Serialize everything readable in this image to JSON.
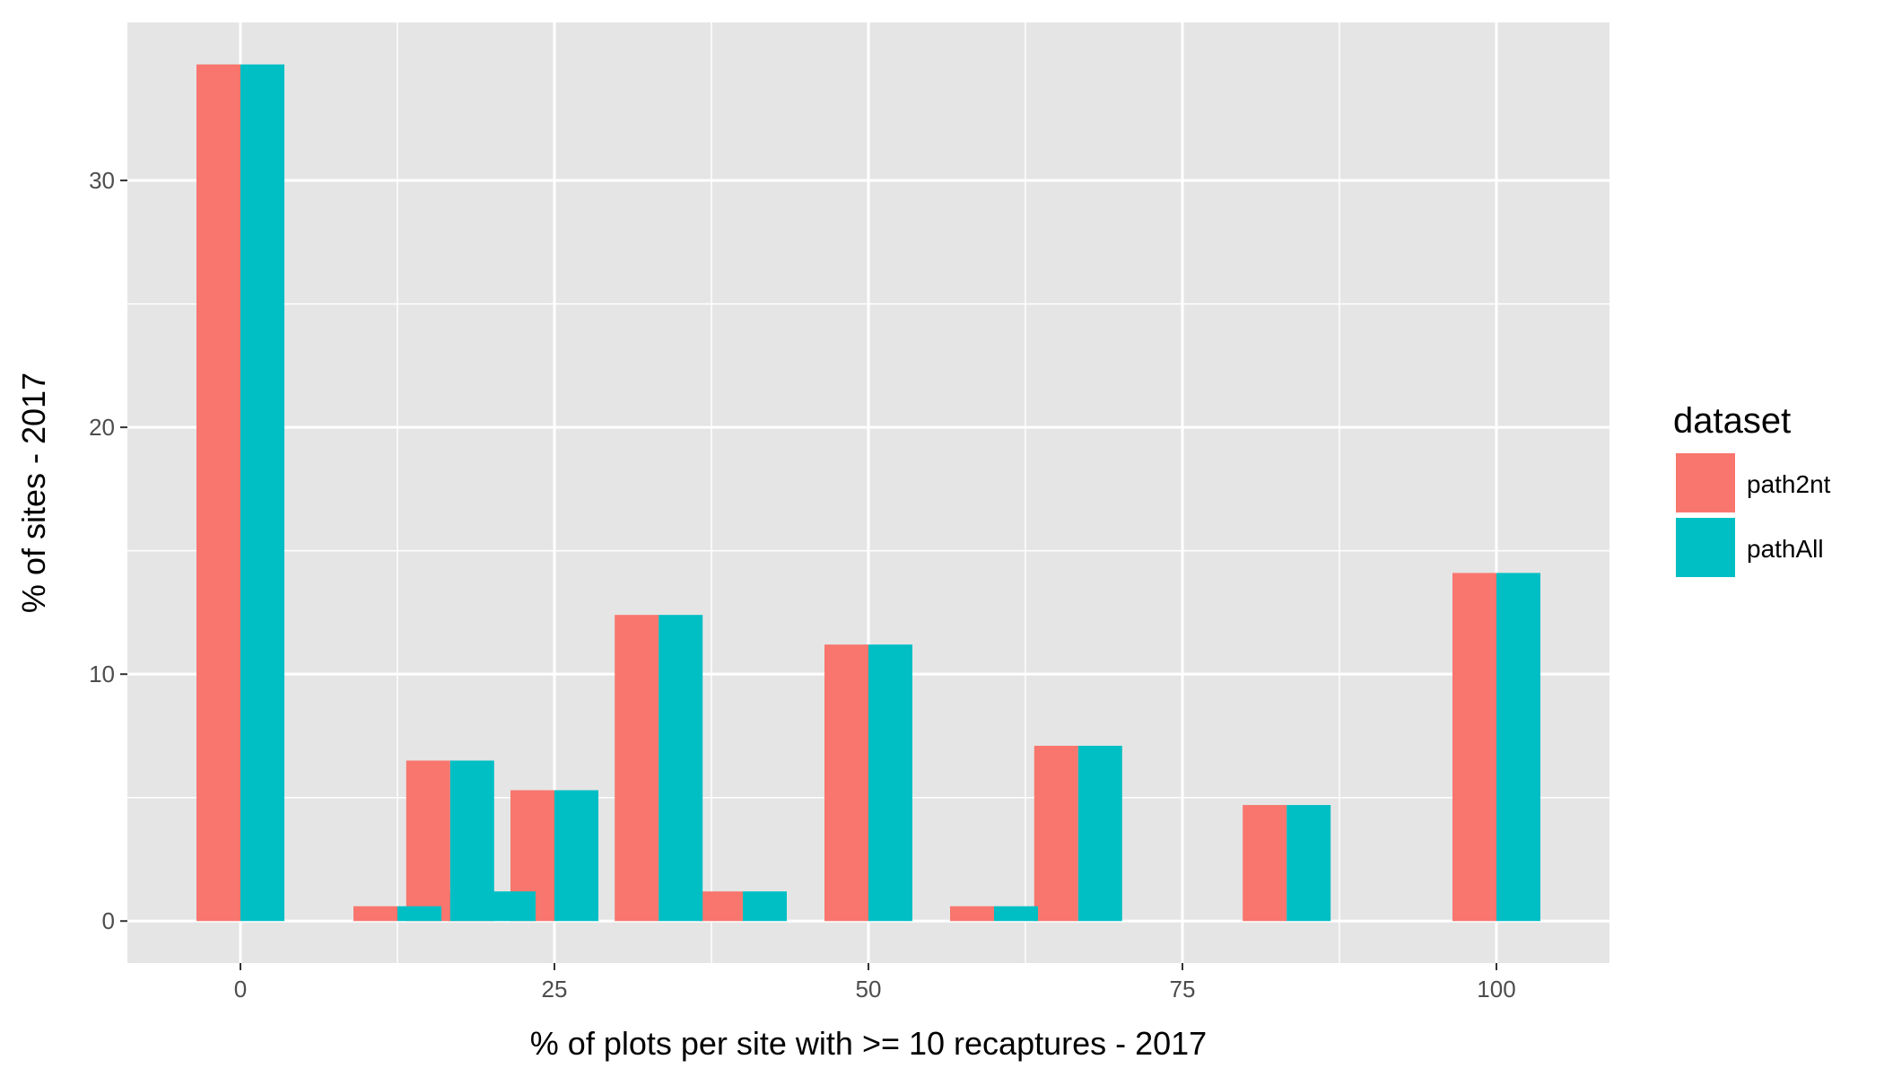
{
  "chart_data": {
    "type": "bar",
    "title": "",
    "xlabel": "% of plots per site with >= 10 recaptures - 2017",
    "ylabel": "% of sites - 2017",
    "xlim": [
      -9,
      109
    ],
    "ylim": [
      -1.7,
      36.4
    ],
    "x_ticks": [
      0,
      25,
      50,
      75,
      100
    ],
    "x_tick_labels": [
      "0",
      "25",
      "50",
      "75",
      "100"
    ],
    "y_ticks": [
      0,
      10,
      20,
      30
    ],
    "y_tick_labels": [
      "0",
      "10",
      "20",
      "30"
    ],
    "bar_width": 3.5,
    "grid": true,
    "legend": {
      "title": "dataset",
      "position": "right"
    },
    "x": [
      0,
      12.5,
      16.7,
      20,
      25,
      33.3,
      40,
      50,
      60,
      66.7,
      83.3,
      100
    ],
    "series": [
      {
        "name": "path2nt",
        "color": "#F8766D",
        "values": [
          34.7,
          0.6,
          6.5,
          1.2,
          5.3,
          12.4,
          1.2,
          11.2,
          0.6,
          7.1,
          4.7,
          14.1
        ]
      },
      {
        "name": "pathAll",
        "color": "#00BFC4",
        "values": [
          34.7,
          0.6,
          6.5,
          1.2,
          5.3,
          12.4,
          1.2,
          11.2,
          0.6,
          7.1,
          4.7,
          14.1
        ]
      }
    ]
  },
  "colors": {
    "panel_background": "#E5E5E5",
    "grid_line": "#FFFFFF",
    "tick_mark": "#333333"
  }
}
